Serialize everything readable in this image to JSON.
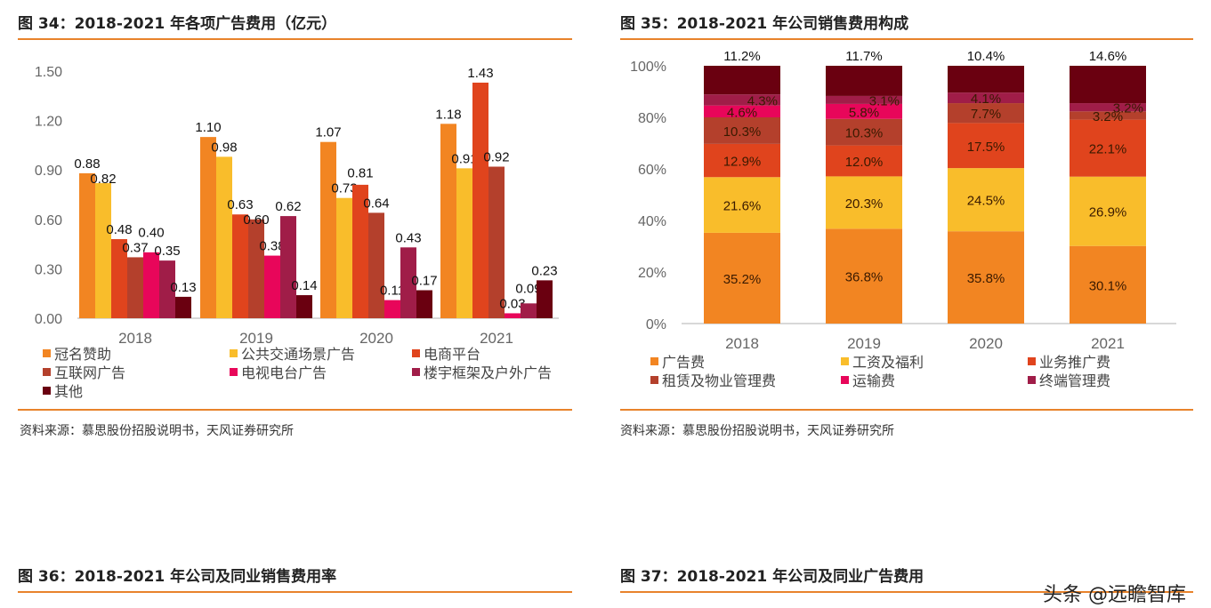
{
  "fig34": {
    "title": "图 34：2018-2021 年各项广告费用（亿元）",
    "source": "资料来源：慕思股份招股说明书，天风证券研究所"
  },
  "fig35": {
    "title": "图 35：2018-2021 年公司销售费用构成",
    "source": "资料来源：慕思股份招股说明书，天风证券研究所"
  },
  "fig36": {
    "title": "图 36：2018-2021 年公司及同业销售费用率"
  },
  "fig37": {
    "title": "图 37：2018-2021 年公司及同业广告费用"
  },
  "watermark": "头条 @远瞻智库",
  "chart_data": [
    {
      "type": "bar",
      "title": "",
      "categories": [
        "2018",
        "2019",
        "2020",
        "2021"
      ],
      "ylim": [
        0,
        1.5
      ],
      "yticks": [
        "0.00",
        "0.30",
        "0.60",
        "0.90",
        "1.20",
        "1.50"
      ],
      "legend": "bottom",
      "grid": false,
      "series": [
        {
          "name": "冠名赞助",
          "color": "#f28522",
          "values": [
            0.88,
            1.1,
            1.07,
            1.18
          ]
        },
        {
          "name": "公共交通场景广告",
          "color": "#f9bd2b",
          "values": [
            0.82,
            0.98,
            0.73,
            0.91
          ]
        },
        {
          "name": "电商平台",
          "color": "#e0441d",
          "values": [
            0.48,
            0.63,
            0.81,
            1.43
          ]
        },
        {
          "name": "互联网广告",
          "color": "#b4402c",
          "values": [
            0.37,
            0.6,
            0.64,
            0.92
          ]
        },
        {
          "name": "电视电台广告",
          "color": "#e8065a",
          "values": [
            0.4,
            0.38,
            0.11,
            0.03
          ]
        },
        {
          "name": "楼宇框架及户外广告",
          "color": "#a01d48",
          "values": [
            0.35,
            0.62,
            0.43,
            0.09
          ]
        },
        {
          "name": "其他",
          "color": "#6a0010",
          "values": [
            0.13,
            0.14,
            0.17,
            0.23
          ]
        }
      ]
    },
    {
      "type": "bar",
      "stacked": true,
      "title": "",
      "categories": [
        "2018",
        "2019",
        "2020",
        "2021"
      ],
      "ylim": [
        0,
        100
      ],
      "yticks": [
        "0%",
        "20%",
        "40%",
        "60%",
        "80%",
        "100%"
      ],
      "legend": "bottom",
      "grid": false,
      "series": [
        {
          "name": "广告费",
          "color": "#f28522",
          "values": [
            35.2,
            36.8,
            35.8,
            30.1
          ]
        },
        {
          "name": "工资及福利",
          "color": "#f9bd2b",
          "values": [
            21.6,
            20.3,
            24.5,
            26.9
          ]
        },
        {
          "name": "业务推广费",
          "color": "#e0441d",
          "values": [
            12.9,
            12.0,
            17.5,
            22.1
          ]
        },
        {
          "name": "租赁及物业管理费",
          "color": "#b4402c",
          "values": [
            10.3,
            10.3,
            7.7,
            3.2
          ]
        },
        {
          "name": "运输费",
          "color": "#e8065a",
          "values": [
            4.6,
            5.8,
            null,
            null
          ]
        },
        {
          "name": "终端管理费",
          "color": "#a01d48",
          "values": [
            4.3,
            3.1,
            4.1,
            3.2
          ]
        },
        {
          "name": "",
          "color": "#6a0010",
          "values": [
            11.2,
            11.7,
            10.4,
            14.6
          ]
        }
      ]
    }
  ]
}
